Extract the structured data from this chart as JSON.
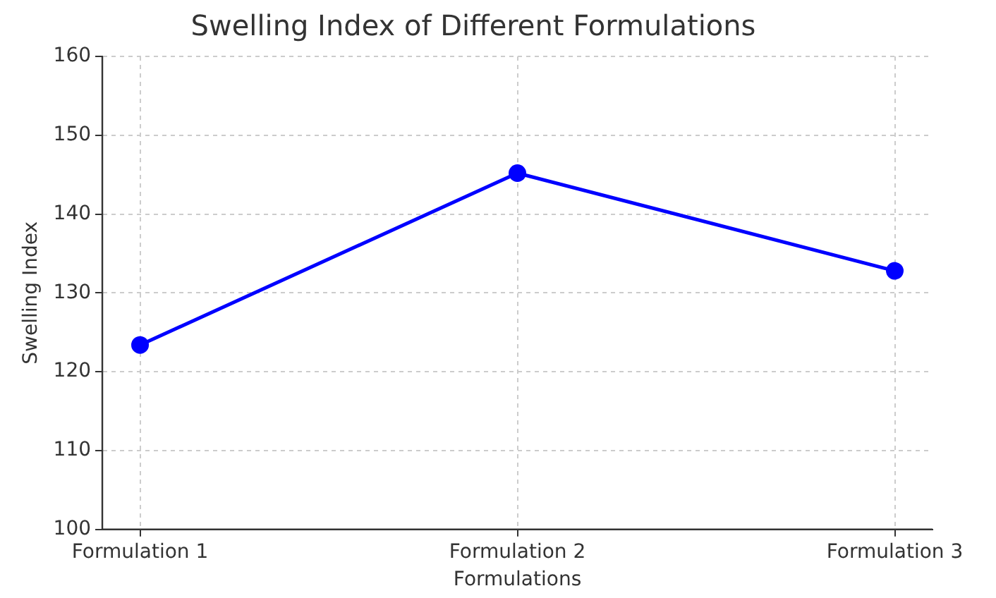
{
  "chart_data": {
    "type": "line",
    "title": "Swelling Index of Different Formulations",
    "xlabel": "Formulations",
    "ylabel": "Swelling Index",
    "categories": [
      "Formulation 1",
      "Formulation 2",
      "Formulation 3"
    ],
    "series": [
      {
        "color": "#0000ff",
        "values": [
          123.4,
          145.2,
          132.8
        ]
      }
    ],
    "ylim": [
      100,
      160
    ],
    "yticks": [
      100,
      110,
      120,
      130,
      140,
      150,
      160
    ],
    "grid": true,
    "legend": false,
    "marker": "circle",
    "line_style": "solid"
  }
}
